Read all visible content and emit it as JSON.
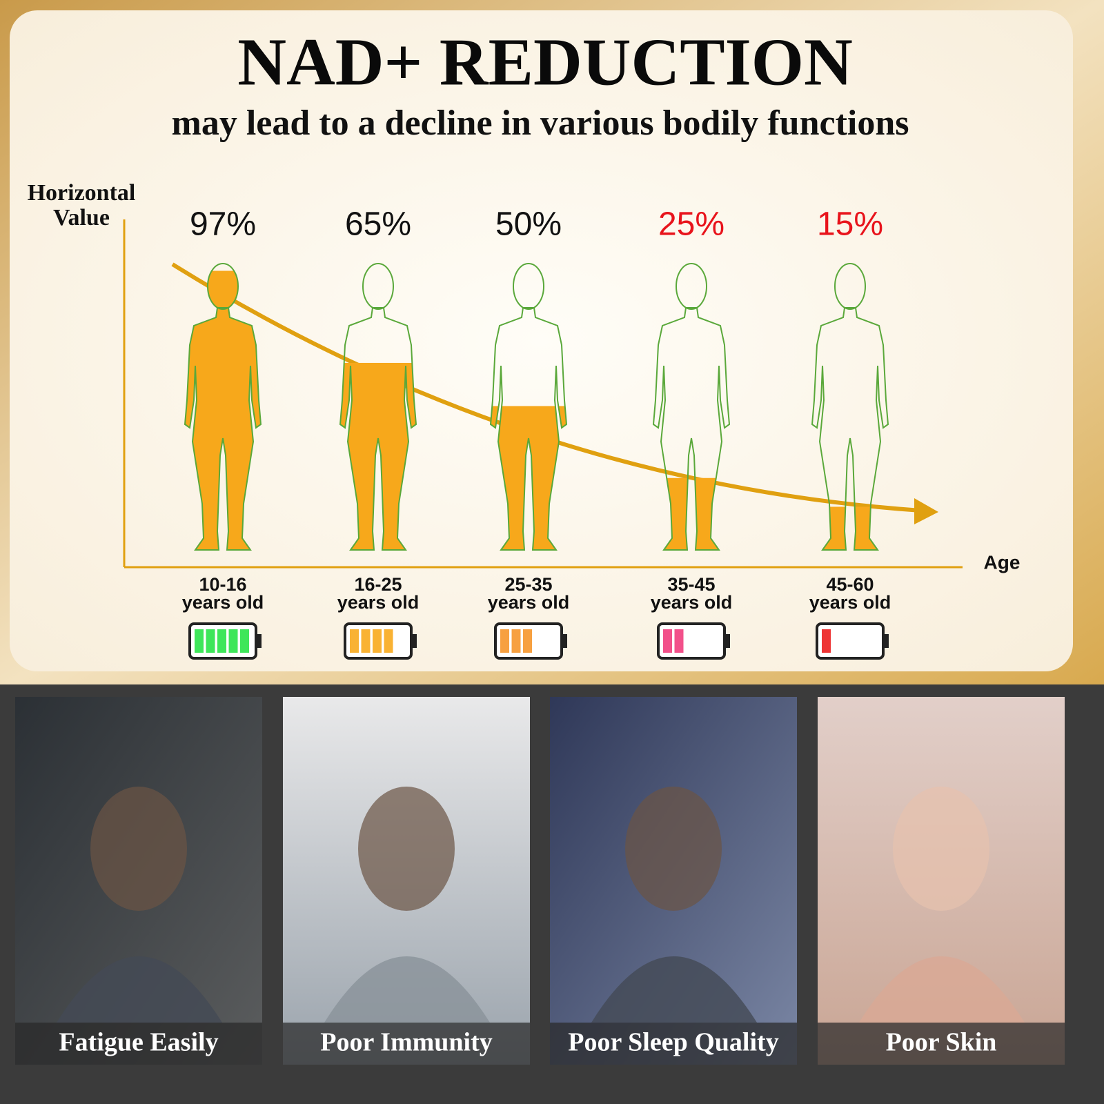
{
  "chart_data": {
    "type": "bar",
    "title": "NAD+ REDUCTION",
    "subtitle": "may lead to a decline in various bodily functions",
    "y_label": "Horizontal\nValue",
    "x_label": "Age",
    "categories": [
      "10-16\nyears old",
      "16-25\nyears old",
      "25-35\nyears old",
      "35-45\nyears old",
      "45-60\nyears old"
    ],
    "values": [
      97,
      65,
      50,
      25,
      15
    ],
    "value_labels": [
      "97%",
      "65%",
      "50%",
      "25%",
      "15%"
    ],
    "value_label_colors": [
      "#111111",
      "#111111",
      "#111111",
      "#e8131b",
      "#e8131b"
    ],
    "color": "#f7a81b",
    "ylim": [
      0,
      100
    ],
    "battery_levels": [
      5,
      4,
      3,
      2,
      1
    ],
    "battery_colors": [
      "#3ee65a",
      "#f9b233",
      "#f7a040",
      "#f2508a",
      "#ee3434"
    ]
  },
  "panels": [
    {
      "label": "Fatigue Easily"
    },
    {
      "label": "Poor Immunity"
    },
    {
      "label": "Poor Sleep Quality"
    },
    {
      "label": "Poor Skin"
    }
  ]
}
